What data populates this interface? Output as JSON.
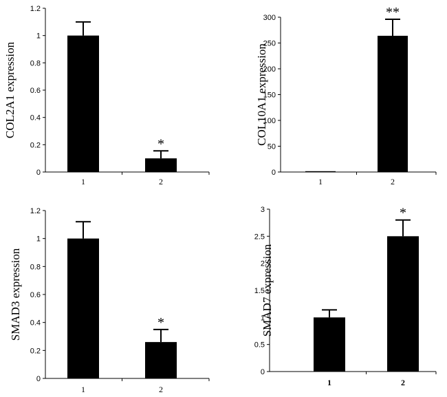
{
  "chart_data": [
    {
      "type": "bar",
      "categories": [
        "1",
        "2"
      ],
      "values": [
        1.0,
        0.1
      ],
      "errors": [
        0.1,
        0.055
      ],
      "significance": [
        "",
        "*"
      ],
      "ylabel": "COL2A1  expression",
      "ylim": [
        0,
        1.2
      ],
      "yticks": [
        0,
        0.2,
        0.4,
        0.6,
        0.8,
        1,
        1.2
      ],
      "ytick_labels": [
        "0",
        "0.2",
        "0.4",
        "0.6",
        "0.8",
        "1",
        "1.2"
      ],
      "bar_color": "#000000"
    },
    {
      "type": "bar",
      "categories": [
        "1",
        "2"
      ],
      "values": [
        1,
        264
      ],
      "errors": [
        0,
        32
      ],
      "significance": [
        "",
        "**"
      ],
      "ylabel": "COL10A1  expression",
      "ylim": [
        0,
        300
      ],
      "yticks": [
        0,
        50,
        100,
        150,
        200,
        250,
        300
      ],
      "ytick_labels": [
        "0",
        "50",
        "100",
        "150",
        "200",
        "250",
        "300"
      ],
      "bar_color": "#000000"
    },
    {
      "type": "bar",
      "categories": [
        "1",
        "2"
      ],
      "values": [
        1.0,
        0.26
      ],
      "errors": [
        0.12,
        0.09
      ],
      "significance": [
        "",
        "*"
      ],
      "ylabel": "SMAD3 expression",
      "ylim": [
        0,
        1.2
      ],
      "yticks": [
        0,
        0.2,
        0.4,
        0.6,
        0.8,
        1,
        1.2
      ],
      "ytick_labels": [
        "0",
        "0.2",
        "0.4",
        "0.6",
        "0.8",
        "1",
        "1.2"
      ],
      "bar_color": "#000000"
    },
    {
      "type": "bar",
      "categories": [
        "1",
        "2"
      ],
      "values": [
        1.0,
        2.5
      ],
      "errors": [
        0.14,
        0.3
      ],
      "significance": [
        "",
        "*"
      ],
      "ylabel": "SMAD7 expression",
      "ylim": [
        0,
        3
      ],
      "yticks": [
        0,
        0.5,
        1,
        1.5,
        2,
        2.5,
        3
      ],
      "ytick_labels": [
        "0",
        "0.5",
        "1",
        "1.5",
        "2",
        "2.5",
        "3"
      ],
      "bar_color": "#000000"
    }
  ]
}
